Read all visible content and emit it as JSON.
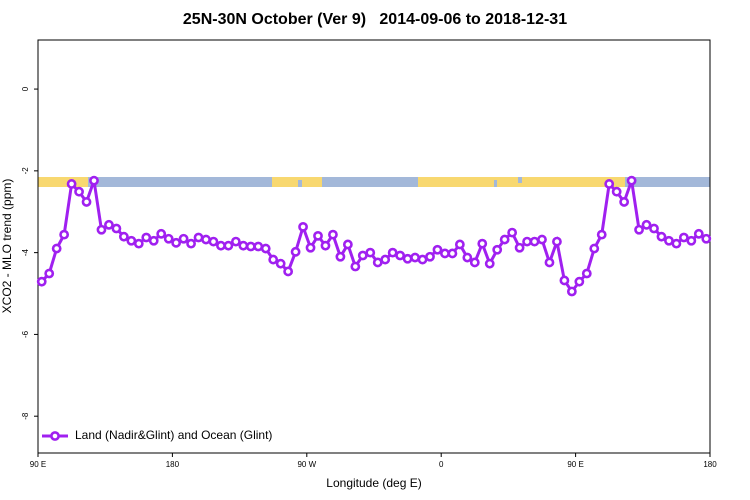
{
  "chart_data": {
    "type": "line",
    "title": "25N-30N October (Ver 9)   2014-09-06 to 2018-12-31",
    "x_label": "Longitude (deg E)",
    "y_label": "XCO2 - MLO trend (ppm)",
    "xlim": [
      90,
      540
    ],
    "ylim": [
      -8.9,
      1.2
    ],
    "xticks": [
      {
        "value": 90,
        "label": "90 E"
      },
      {
        "value": 180,
        "label": "180"
      },
      {
        "value": 270,
        "label": "90 W"
      },
      {
        "value": 360,
        "label": "0"
      },
      {
        "value": 450,
        "label": "90 E"
      },
      {
        "value": 540,
        "label": "180"
      }
    ],
    "yticks": [
      0,
      -2,
      -4,
      -6,
      -8
    ],
    "legend_position": "bottom-left",
    "x": [
      92.5,
      97.5,
      102.5,
      107.5,
      112.5,
      117.5,
      122.5,
      127.5,
      132.5,
      137.5,
      142.5,
      147.5,
      152.5,
      157.5,
      162.5,
      167.5,
      172.5,
      177.5,
      182.5,
      187.5,
      192.5,
      197.5,
      202.5,
      207.5,
      212.5,
      217.5,
      222.5,
      227.5,
      232.5,
      237.5,
      242.5,
      247.5,
      252.5,
      257.5,
      262.5,
      267.5,
      272.5,
      277.5,
      282.5,
      287.5,
      292.5,
      297.5,
      302.5,
      307.5,
      312.5,
      317.5,
      322.5,
      327.5,
      332.5,
      337.5,
      342.5,
      347.5,
      352.5,
      357.5,
      362.5,
      367.5,
      372.5,
      377.5,
      382.5,
      387.5,
      392.5,
      397.5,
      402.5,
      407.5,
      412.5,
      417.5,
      422.5,
      427.5,
      432.5,
      437.5,
      442.5,
      447.5,
      452.5,
      457.5,
      462.5,
      467.5,
      472.5,
      477.5,
      482.5,
      487.5,
      492.5,
      497.5,
      502.5,
      507.5,
      512.5,
      517.5,
      522.5,
      527.5,
      532.5,
      537.5
    ],
    "series": [
      {
        "name": "Land (Nadir&Glint) and Ocean (Glint)",
        "color": "#a020f0",
        "values": [
          -4.71,
          -4.51,
          -3.9,
          -3.56,
          -2.32,
          -2.51,
          -2.76,
          -2.24,
          -3.44,
          -3.32,
          -3.41,
          -3.61,
          -3.71,
          -3.78,
          -3.63,
          -3.71,
          -3.54,
          -3.66,
          -3.76,
          -3.66,
          -3.78,
          -3.63,
          -3.68,
          -3.73,
          -3.83,
          -3.83,
          -3.73,
          -3.83,
          -3.85,
          -3.85,
          -3.9,
          -4.17,
          -4.27,
          -4.46,
          -3.98,
          -3.37,
          -3.88,
          -3.59,
          -3.83,
          -3.56,
          -4.1,
          -3.8,
          -4.34,
          -4.07,
          -4.0,
          -4.24,
          -4.17,
          -4.0,
          -4.07,
          -4.15,
          -4.12,
          -4.17,
          -4.1,
          -3.93,
          -4.02,
          -4.02,
          -3.8,
          -4.12,
          -4.24,
          -3.78,
          -4.27,
          -3.93,
          -3.68,
          -3.51,
          -3.88,
          -3.73,
          -3.73,
          -3.68,
          -4.24,
          -3.73,
          -4.68,
          -4.95,
          -4.71,
          -4.51,
          -3.9,
          -3.56,
          -2.32,
          -2.51,
          -2.76,
          -2.24,
          -3.44,
          -3.32,
          -3.41,
          -3.61,
          -3.71,
          -3.78,
          -3.63,
          -3.71,
          -3.54,
          -3.66
        ]
      }
    ]
  }
}
